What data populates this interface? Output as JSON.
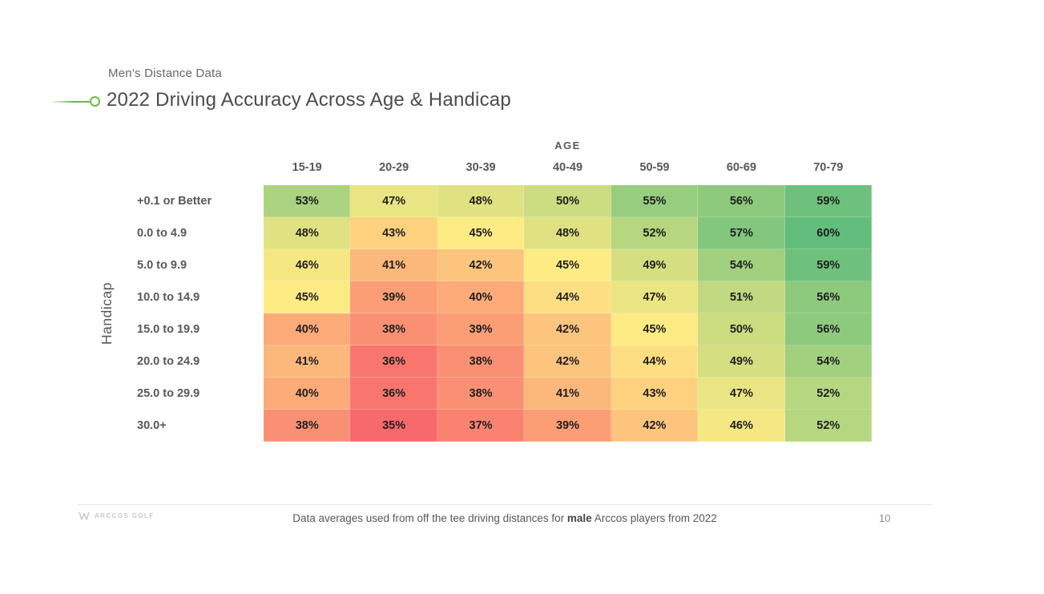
{
  "page": {
    "background": "#ffffff",
    "accent_green": "#6cbd45"
  },
  "header": {
    "eyebrow": "Men’s Distance Data",
    "title": "2022 Driving Accuracy Across Age & Handicap"
  },
  "chart_data": {
    "type": "heatmap",
    "title": "2022 Driving Accuracy Across Age & Handicap",
    "subtitle": "Men’s Distance Data",
    "x_axis_label": "AGE",
    "y_axis_label": "Handicap",
    "columns": [
      "15-19",
      "20-29",
      "30-39",
      "40-49",
      "50-59",
      "60-69",
      "70-79"
    ],
    "rows": [
      "+0.1 or Better",
      "0.0 to 4.9",
      "5.0 to 9.9",
      "10.0 to 14.9",
      "15.0 to 19.9",
      "20.0 to 24.9",
      "25.0 to 29.9",
      "30.0+"
    ],
    "values": [
      [
        53,
        47,
        48,
        50,
        55,
        56,
        59
      ],
      [
        48,
        43,
        45,
        48,
        52,
        57,
        60
      ],
      [
        46,
        41,
        42,
        45,
        49,
        54,
        59
      ],
      [
        45,
        39,
        40,
        44,
        47,
        51,
        56
      ],
      [
        40,
        38,
        39,
        42,
        45,
        50,
        56
      ],
      [
        41,
        36,
        38,
        42,
        44,
        49,
        54
      ],
      [
        40,
        36,
        38,
        41,
        43,
        47,
        52
      ],
      [
        38,
        35,
        37,
        39,
        42,
        46,
        52
      ]
    ],
    "value_suffix": "%",
    "color_scale": {
      "min_value": 35,
      "mid_value": 45,
      "max_value": 60,
      "min_color": "#F8696B",
      "mid_color": "#FFEB84",
      "max_color": "#63BE7B"
    },
    "legend": "none",
    "grid": false
  },
  "footer": {
    "logo_text": "ARCCOS GOLF",
    "note_prefix": "Data averages used from off the tee driving distances for ",
    "note_bold": "male",
    "note_suffix": " Arccos players from 2022",
    "page_number": "10"
  }
}
